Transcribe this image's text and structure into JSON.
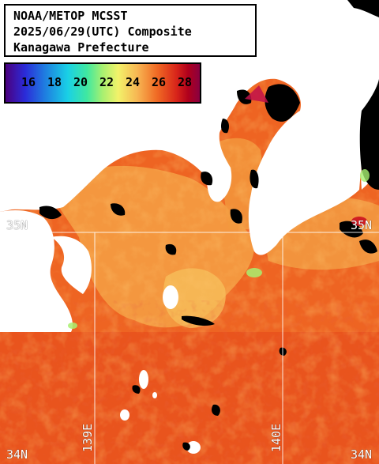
{
  "header": {
    "line1": "NOAA/METOP MCSST",
    "line2": "2025/06/29(UTC) Composite",
    "line3": "Kanagawa Prefecture"
  },
  "legend": {
    "ticks": [
      "16",
      "18",
      "20",
      "22",
      "24",
      "26",
      "28"
    ],
    "colors": [
      "#4b007f",
      "#2b2bd8",
      "#19d0e6",
      "#a8f070",
      "#f2f26a",
      "#f06a24",
      "#b0001c"
    ]
  },
  "grid_labels": {
    "lat_35_left": "35N",
    "lat_35_right": "35N",
    "lat_34_left": "34N",
    "lat_34_right": "34N",
    "lon_139": "139E",
    "lon_140": "140E"
  },
  "colors": {
    "land": "#ffffff",
    "no_data": "#000000",
    "sea_warm": "#f06a24",
    "sea_hot": "#e24018",
    "sea_cool": "#f7b552"
  }
}
